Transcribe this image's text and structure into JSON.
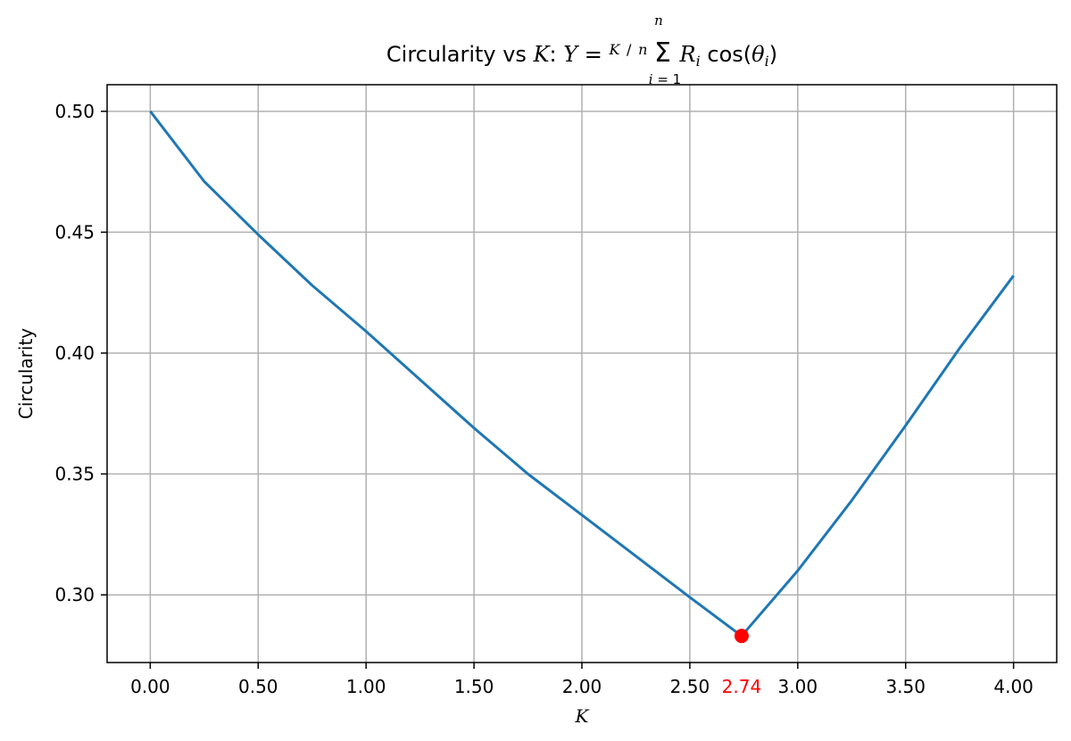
{
  "chart_data": {
    "type": "line",
    "title": "Circularity vs K: Y = (K/n) Σ R_i cos(θ_i)",
    "title_prefix": "Circularity vs",
    "xlabel": "K",
    "ylabel": "Circularity",
    "xlim": [
      -0.2,
      4.2
    ],
    "ylim": [
      0.272,
      0.511
    ],
    "xticks": [
      0.0,
      0.5,
      1.0,
      1.5,
      2.0,
      2.5,
      3.0,
      3.5,
      4.0
    ],
    "xtick_labels": [
      "0.00",
      "0.50",
      "1.00",
      "1.50",
      "2.00",
      "2.50",
      "3.00",
      "3.50",
      "4.00"
    ],
    "yticks": [
      0.3,
      0.35,
      0.4,
      0.45,
      0.5
    ],
    "ytick_labels": [
      "0.30",
      "0.35",
      "0.40",
      "0.45",
      "0.50"
    ],
    "grid": true,
    "series": [
      {
        "color": "#1f77b4",
        "x": [
          0.0,
          0.25,
          0.5,
          0.75,
          1.0,
          1.25,
          1.5,
          1.75,
          2.0,
          2.25,
          2.5,
          2.74,
          3.0,
          3.25,
          3.5,
          3.75,
          4.0
        ],
        "y": [
          0.5,
          0.471,
          0.449,
          0.428,
          0.409,
          0.389,
          0.369,
          0.35,
          0.333,
          0.316,
          0.299,
          0.283,
          0.31,
          0.339,
          0.37,
          0.402,
          0.432
        ]
      }
    ],
    "highlight": {
      "x": 2.74,
      "y": 0.283,
      "label": "2.74",
      "color": "#ff0000"
    }
  }
}
